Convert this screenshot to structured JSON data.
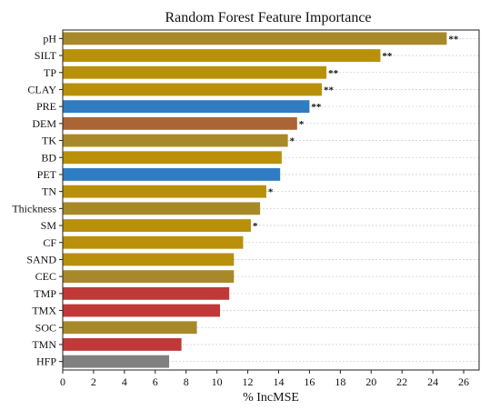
{
  "chart_data": {
    "type": "bar",
    "orientation": "horizontal",
    "title": "Random Forest Feature Importance",
    "xlabel": "% IncMSE",
    "ylabel": "",
    "xlim": [
      0,
      27
    ],
    "xticks": [
      0,
      2,
      4,
      6,
      8,
      10,
      12,
      14,
      16,
      18,
      20,
      22,
      24,
      26
    ],
    "grid": "horizontal dotted",
    "legend": "none",
    "categories": [
      "pH",
      "SILT",
      "TP",
      "CLAY",
      "PRE",
      "DEM",
      "TK",
      "BD",
      "PET",
      "TN",
      "Thickness",
      "SM",
      "CF",
      "SAND",
      "CEC",
      "TMP",
      "TMX",
      "SOC",
      "TMN",
      "HFP"
    ],
    "values": [
      24.9,
      20.6,
      17.1,
      16.8,
      16.0,
      15.2,
      14.6,
      14.2,
      14.1,
      13.2,
      12.8,
      12.2,
      11.7,
      11.1,
      11.1,
      10.8,
      10.2,
      8.7,
      7.7,
      6.9
    ],
    "significance": [
      "**",
      "**",
      "**",
      "**",
      "**",
      "*",
      "*",
      "",
      "",
      "*",
      "",
      "*",
      "",
      "",
      "",
      "",
      "",
      "",
      "",
      ""
    ],
    "colors": [
      "#a8892a",
      "#b8900a",
      "#b8900a",
      "#b8900a",
      "#2f7cc3",
      "#ab6435",
      "#a8892a",
      "#b8900a",
      "#2f7cc3",
      "#b8900a",
      "#a8892a",
      "#b8900a",
      "#b8900a",
      "#b8900a",
      "#a8892a",
      "#c13838",
      "#c13838",
      "#a8892a",
      "#c13838",
      "#808080"
    ]
  }
}
